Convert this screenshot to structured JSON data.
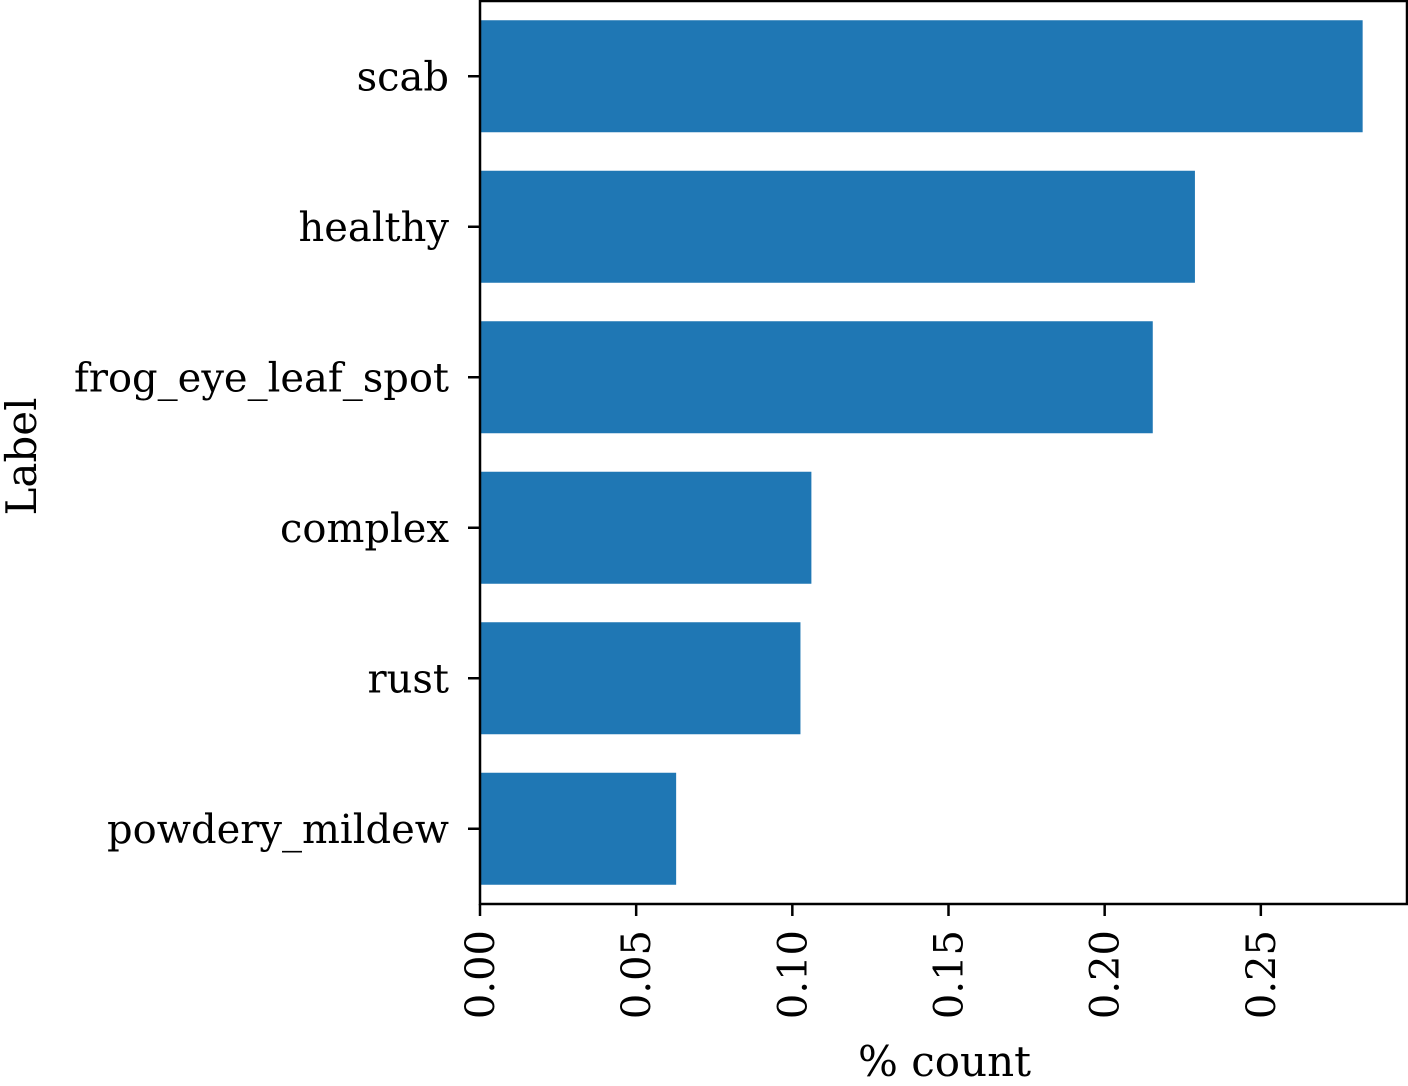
{
  "chart_data": {
    "type": "bar",
    "orientation": "horizontal",
    "categories": [
      "scab",
      "healthy",
      "frog_eye_leaf_spot",
      "complex",
      "rust",
      "powdery_mildew"
    ],
    "values": [
      0.2826,
      0.2289,
      0.2154,
      0.1061,
      0.1026,
      0.0628
    ],
    "xlabel": "% count",
    "ylabel": "Label",
    "xlim": [
      0,
      0.2968
    ],
    "xticks": [
      "0.00",
      "0.05",
      "0.10",
      "0.15",
      "0.20",
      "0.25"
    ],
    "xtick_values": [
      0,
      0.05,
      0.1,
      0.15,
      0.2,
      0.25
    ],
    "grid": false,
    "bar_color": "#1f77b4"
  }
}
